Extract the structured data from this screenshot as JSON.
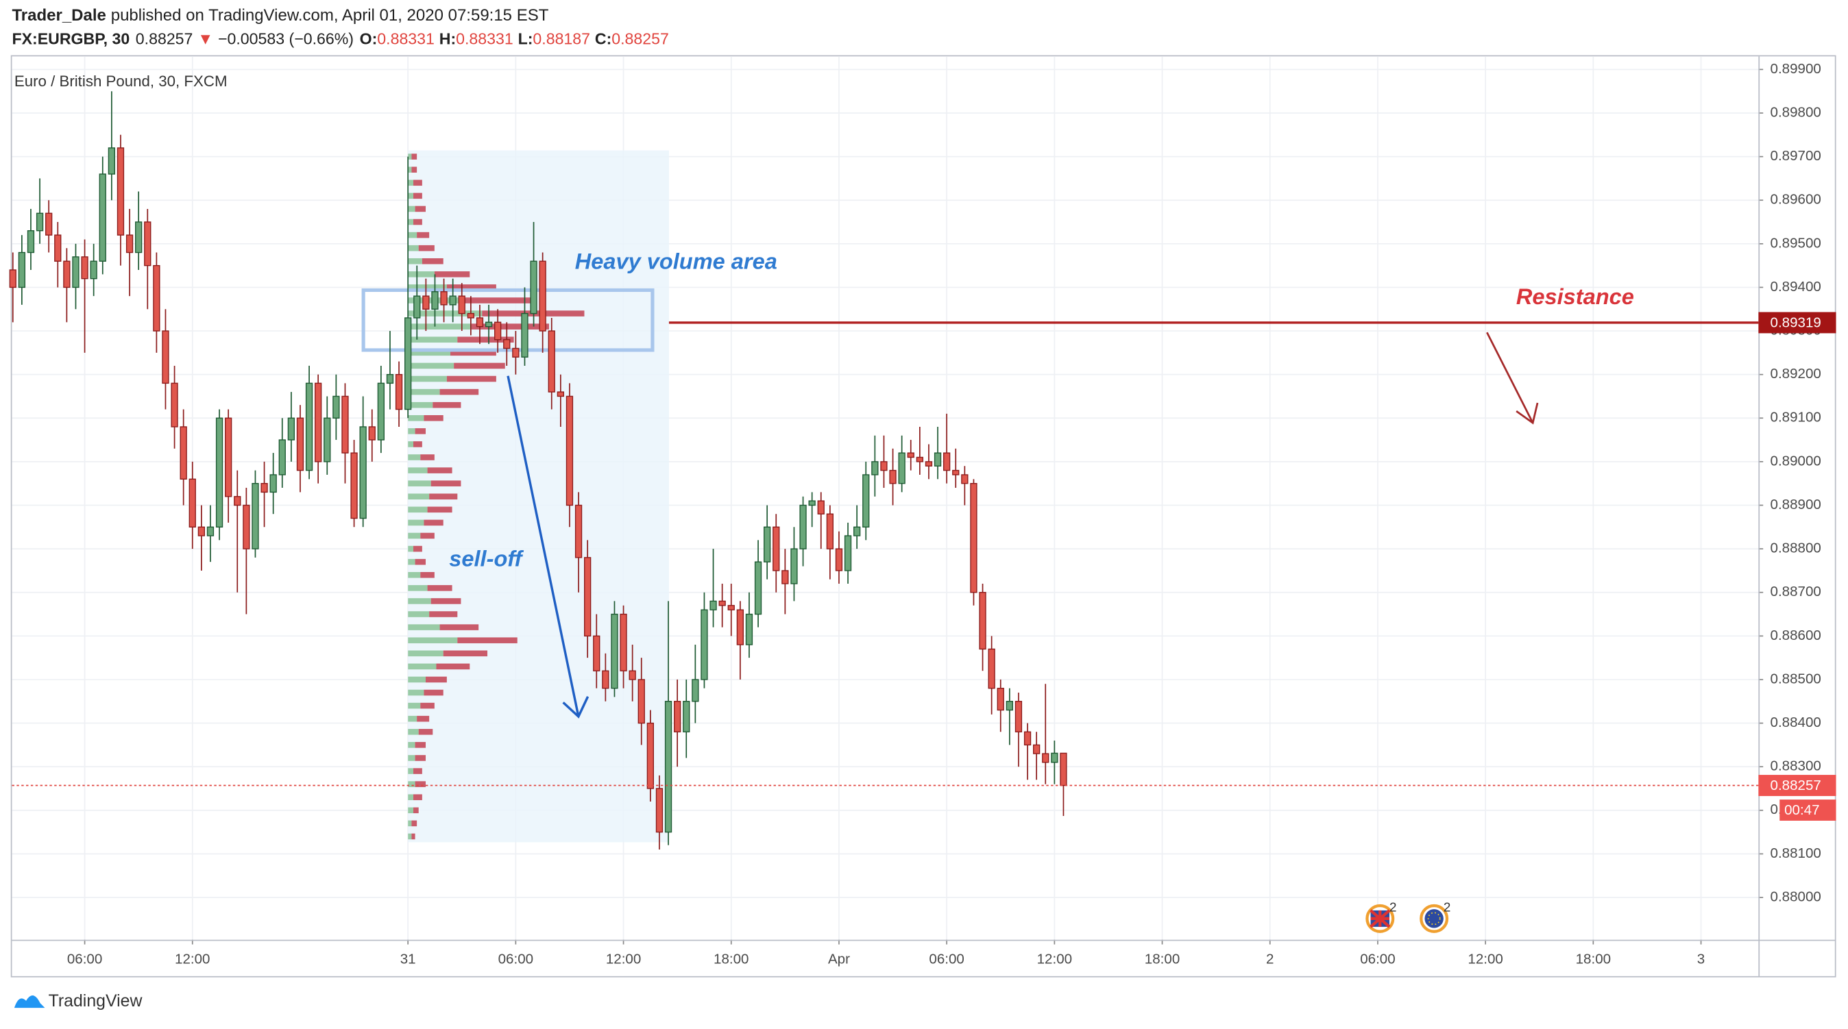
{
  "header": {
    "author": "Trader_Dale",
    "published": "published on TradingView.com, April 01, 2020 07:59:15 EST",
    "symbol": "FX:EURGBP, 30",
    "direction": "▼",
    "change": "−0.00583 (−0.66%)",
    "ohlc_labels": [
      "O:",
      "H:",
      "L:",
      "C:"
    ]
  },
  "footer": {
    "brand": "TradingView"
  },
  "chart_data": {
    "type": "candlestick",
    "title": "Euro / British Pound, 30, FXCM",
    "x": [
      2,
      2.5,
      3,
      3.5,
      4,
      4.5,
      5,
      5.5,
      6,
      6.5,
      7,
      7.5,
      8,
      8.5,
      9,
      9.5,
      10,
      10.5,
      11,
      11.5,
      12,
      12.5,
      13,
      13.5,
      14,
      14.5,
      15,
      15.5,
      16,
      16.5,
      17,
      17.5,
      18,
      18.5,
      19,
      19.5,
      20,
      20.5,
      21,
      21.5,
      22,
      22.5,
      23,
      23.5,
      24,
      24.5,
      25,
      25.5,
      26,
      26.5,
      27,
      27.5,
      28,
      28.5,
      29,
      29.5,
      30,
      30.5,
      31,
      31.5,
      32,
      32.5,
      33,
      33.5,
      34,
      34.5,
      35,
      35.5,
      36,
      36.5,
      37,
      37.5,
      38,
      38.5,
      39,
      39.5,
      40,
      40.5,
      41,
      41.5,
      42,
      42.5,
      43,
      43.5,
      44,
      44.5,
      45,
      45.5,
      46,
      46.5,
      47,
      47.5,
      48,
      48.5,
      49,
      49.5,
      50,
      50.5,
      51,
      51.5,
      52,
      52.5,
      53,
      53.5,
      54,
      54.5,
      55,
      55.5,
      56,
      56.5,
      57,
      57.5,
      58,
      58.5,
      59,
      59.5,
      60,
      60.5
    ],
    "open": [
      0.8944,
      0.894,
      0.8948,
      0.8953,
      0.8957,
      0.8952,
      0.8946,
      0.894,
      0.8947,
      0.8942,
      0.8946,
      0.8966,
      0.8972,
      0.8952,
      0.8948,
      0.8955,
      0.8945,
      0.893,
      0.8918,
      0.8908,
      0.8896,
      0.8885,
      0.8883,
      0.8885,
      0.891,
      0.8892,
      0.889,
      0.888,
      0.8895,
      0.8893,
      0.8897,
      0.8905,
      0.891,
      0.8898,
      0.8918,
      0.89,
      0.891,
      0.8915,
      0.8902,
      0.8887,
      0.8908,
      0.8905,
      0.8918,
      0.892,
      0.8912,
      0.8933,
      0.8938,
      0.8935,
      0.8939,
      0.8936,
      0.8938,
      0.8934,
      0.8933,
      0.8931,
      0.8932,
      0.8928,
      0.8926,
      0.8924,
      0.8934,
      0.8946,
      0.893,
      0.8916,
      0.8915,
      0.889,
      0.8878,
      0.886,
      0.8852,
      0.8848,
      0.8865,
      0.8852,
      0.885,
      0.884,
      0.8825,
      0.8815,
      0.8845,
      0.8838,
      0.8845,
      0.885,
      0.8866,
      0.8868,
      0.8867,
      0.8866,
      0.8858,
      0.8865,
      0.8877,
      0.8885,
      0.8875,
      0.8872,
      0.888,
      0.889,
      0.8891,
      0.8888,
      0.888,
      0.8875,
      0.8883,
      0.8885,
      0.8897,
      0.89,
      0.8898,
      0.8895,
      0.8902,
      0.8901,
      0.89,
      0.8899,
      0.8902,
      0.8898,
      0.8897,
      0.8895,
      0.887,
      0.8857,
      0.8848,
      0.8843,
      0.8845,
      0.8838,
      0.8835,
      0.8833,
      0.8831,
      0.88331
    ],
    "high": [
      0.8948,
      0.8952,
      0.8958,
      0.8965,
      0.896,
      0.8955,
      0.8949,
      0.895,
      0.8951,
      0.895,
      0.897,
      0.8985,
      0.8975,
      0.8958,
      0.8962,
      0.8958,
      0.8948,
      0.8935,
      0.8922,
      0.8912,
      0.89,
      0.889,
      0.889,
      0.8912,
      0.8912,
      0.8898,
      0.8894,
      0.8898,
      0.89,
      0.8902,
      0.891,
      0.8916,
      0.8913,
      0.8922,
      0.892,
      0.8915,
      0.892,
      0.8918,
      0.8905,
      0.8915,
      0.8912,
      0.8922,
      0.893,
      0.8923,
      0.897,
      0.8945,
      0.8942,
      0.8943,
      0.8942,
      0.8942,
      0.8941,
      0.8938,
      0.8936,
      0.8936,
      0.8935,
      0.8932,
      0.893,
      0.894,
      0.8955,
      0.8948,
      0.8933,
      0.892,
      0.8918,
      0.8893,
      0.8882,
      0.8865,
      0.8856,
      0.8868,
      0.8867,
      0.8858,
      0.8855,
      0.8843,
      0.8828,
      0.8868,
      0.885,
      0.885,
      0.8858,
      0.887,
      0.888,
      0.8872,
      0.8872,
      0.8868,
      0.887,
      0.8882,
      0.889,
      0.8888,
      0.888,
      0.8885,
      0.8892,
      0.8893,
      0.8893,
      0.889,
      0.8884,
      0.8886,
      0.889,
      0.89,
      0.8906,
      0.8906,
      0.8903,
      0.8906,
      0.8905,
      0.8908,
      0.8904,
      0.8908,
      0.8911,
      0.8903,
      0.8899,
      0.8896,
      0.8872,
      0.886,
      0.885,
      0.8848,
      0.8847,
      0.884,
      0.8838,
      0.8849,
      0.8836,
      0.88331
    ],
    "low": [
      0.8932,
      0.8936,
      0.8944,
      0.895,
      0.8948,
      0.894,
      0.8932,
      0.8935,
      0.8925,
      0.8938,
      0.8943,
      0.896,
      0.8945,
      0.8938,
      0.8944,
      0.8935,
      0.8925,
      0.8912,
      0.8903,
      0.889,
      0.888,
      0.8875,
      0.8877,
      0.8882,
      0.8886,
      0.887,
      0.8865,
      0.8878,
      0.8885,
      0.8888,
      0.8894,
      0.89,
      0.8893,
      0.8896,
      0.8895,
      0.8897,
      0.8905,
      0.8895,
      0.8885,
      0.8885,
      0.89,
      0.8902,
      0.8912,
      0.8908,
      0.891,
      0.8928,
      0.893,
      0.8931,
      0.8932,
      0.8932,
      0.893,
      0.8929,
      0.8927,
      0.8927,
      0.8925,
      0.8922,
      0.892,
      0.8922,
      0.8931,
      0.8925,
      0.8912,
      0.8908,
      0.8885,
      0.887,
      0.8855,
      0.8848,
      0.8845,
      0.8846,
      0.8848,
      0.8845,
      0.8835,
      0.8822,
      0.8811,
      0.8812,
      0.883,
      0.8832,
      0.884,
      0.8848,
      0.8862,
      0.8862,
      0.886,
      0.885,
      0.8855,
      0.8862,
      0.8873,
      0.887,
      0.8865,
      0.8868,
      0.8876,
      0.8885,
      0.888,
      0.8873,
      0.8872,
      0.8872,
      0.888,
      0.8882,
      0.8892,
      0.8894,
      0.889,
      0.8893,
      0.8898,
      0.8897,
      0.8896,
      0.8896,
      0.8895,
      0.8894,
      0.889,
      0.8867,
      0.8852,
      0.8842,
      0.8838,
      0.8835,
      0.883,
      0.8827,
      0.8827,
      0.8826,
      0.8826,
      0.88187
    ],
    "close": [
      0.894,
      0.8948,
      0.8953,
      0.8957,
      0.8952,
      0.8946,
      0.894,
      0.8947,
      0.8942,
      0.8946,
      0.8966,
      0.8972,
      0.8952,
      0.8948,
      0.8955,
      0.8945,
      0.893,
      0.8918,
      0.8908,
      0.8896,
      0.8885,
      0.8883,
      0.8885,
      0.891,
      0.8892,
      0.889,
      0.888,
      0.8895,
      0.8893,
      0.8897,
      0.8905,
      0.891,
      0.8898,
      0.8918,
      0.89,
      0.891,
      0.8915,
      0.8902,
      0.8887,
      0.8908,
      0.8905,
      0.8918,
      0.892,
      0.8912,
      0.8933,
      0.8938,
      0.8935,
      0.8939,
      0.8936,
      0.8938,
      0.8934,
      0.8933,
      0.8931,
      0.8932,
      0.8928,
      0.8926,
      0.8924,
      0.8934,
      0.8946,
      0.893,
      0.8916,
      0.8915,
      0.889,
      0.8878,
      0.886,
      0.8852,
      0.8848,
      0.8865,
      0.8852,
      0.885,
      0.884,
      0.8825,
      0.8815,
      0.8845,
      0.8838,
      0.8845,
      0.885,
      0.8866,
      0.8868,
      0.8867,
      0.8866,
      0.8858,
      0.8865,
      0.8877,
      0.8885,
      0.8875,
      0.8872,
      0.888,
      0.889,
      0.8891,
      0.8888,
      0.888,
      0.8875,
      0.8883,
      0.8885,
      0.8897,
      0.89,
      0.8898,
      0.8895,
      0.8902,
      0.8901,
      0.89,
      0.8899,
      0.8902,
      0.8898,
      0.8897,
      0.8895,
      0.887,
      0.8857,
      0.8848,
      0.8843,
      0.8845,
      0.8838,
      0.8835,
      0.8833,
      0.8831,
      0.88331,
      0.88257
    ],
    "up_color": "#6aa77a",
    "down_color": "#e0574d",
    "xlim": [
      1.95,
      99.2
    ],
    "xticks": [
      {
        "value": 6,
        "label": "06:00"
      },
      {
        "value": 12,
        "label": "12:00"
      },
      {
        "value": 24,
        "label": "31"
      },
      {
        "value": 30,
        "label": "06:00"
      },
      {
        "value": 36,
        "label": "12:00"
      },
      {
        "value": 42,
        "label": "18:00"
      },
      {
        "value": 48,
        "label": "Apr"
      },
      {
        "value": 54,
        "label": "06:00"
      },
      {
        "value": 60,
        "label": "12:00"
      },
      {
        "value": 66,
        "label": "18:00"
      },
      {
        "value": 72,
        "label": "2"
      },
      {
        "value": 78,
        "label": "06:00"
      },
      {
        "value": 84,
        "label": "12:00"
      },
      {
        "value": 90,
        "label": "18:00"
      },
      {
        "value": 96,
        "label": "3"
      }
    ],
    "ylim": [
      0.87903,
      0.8993
    ],
    "yticks": [
      {
        "value": 0.88,
        "label": "0.88000"
      },
      {
        "value": 0.881,
        "label": "0.88100"
      },
      {
        "value": 0.882,
        "label": "0.88200"
      },
      {
        "value": 0.883,
        "label": "0.88300"
      },
      {
        "value": 0.884,
        "label": "0.88400"
      },
      {
        "value": 0.885,
        "label": "0.88500"
      },
      {
        "value": 0.886,
        "label": "0.88600"
      },
      {
        "value": 0.887,
        "label": "0.88700"
      },
      {
        "value": 0.888,
        "label": "0.88800"
      },
      {
        "value": 0.889,
        "label": "0.88900"
      },
      {
        "value": 0.89,
        "label": "0.89000"
      },
      {
        "value": 0.891,
        "label": "0.89100"
      },
      {
        "value": 0.892,
        "label": "0.89200"
      },
      {
        "value": 0.893,
        "label": "0.89300"
      },
      {
        "value": 0.894,
        "label": "0.89400"
      },
      {
        "value": 0.895,
        "label": "0.89500"
      },
      {
        "value": 0.896,
        "label": "0.89600"
      },
      {
        "value": 0.897,
        "label": "0.89700"
      },
      {
        "value": 0.898,
        "label": "0.89800"
      },
      {
        "value": 0.899,
        "label": "0.89900"
      }
    ],
    "grid": true,
    "volume_profile": {
      "price": [
        0.897,
        0.8967,
        0.8964,
        0.8961,
        0.8958,
        0.8955,
        0.8952,
        0.8949,
        0.8946,
        0.8943,
        0.894,
        0.8937,
        0.8934,
        0.8931,
        0.8928,
        0.8925,
        0.8922,
        0.8919,
        0.8916,
        0.8913,
        0.891,
        0.8907,
        0.8904,
        0.8901,
        0.8898,
        0.8895,
        0.8892,
        0.8889,
        0.8886,
        0.8883,
        0.888,
        0.8877,
        0.8874,
        0.8871,
        0.8868,
        0.8865,
        0.8862,
        0.8859,
        0.8856,
        0.8853,
        0.885,
        0.8847,
        0.8844,
        0.8841,
        0.8838,
        0.8835,
        0.8832,
        0.8829,
        0.8826,
        0.8823,
        0.882,
        0.8817,
        0.8814
      ],
      "up": [
        2,
        2,
        3,
        3,
        4,
        3,
        5,
        6,
        8,
        15,
        22,
        30,
        42,
        36,
        28,
        24,
        26,
        22,
        18,
        14,
        9,
        4,
        3,
        7,
        11,
        13,
        12,
        11,
        9,
        7,
        3,
        4,
        7,
        11,
        13,
        12,
        18,
        28,
        20,
        16,
        10,
        9,
        7,
        5,
        6,
        4,
        4,
        3,
        4,
        3,
        3,
        2,
        2
      ],
      "down": [
        3,
        3,
        5,
        5,
        6,
        5,
        7,
        9,
        12,
        20,
        28,
        40,
        58,
        44,
        32,
        26,
        29,
        28,
        22,
        16,
        11,
        6,
        5,
        8,
        14,
        17,
        16,
        14,
        11,
        8,
        5,
        6,
        8,
        14,
        17,
        16,
        22,
        34,
        25,
        19,
        12,
        11,
        8,
        7,
        8,
        6,
        6,
        5,
        6,
        5,
        3,
        3,
        2
      ],
      "up_color": "#8fc79c",
      "down_color": "#c44a5a"
    },
    "annotations": {
      "volume_area": "Heavy volume area",
      "selloff": "sell-off"
    },
    "resistance": {
      "label": "Resistance",
      "price": 0.89319
    },
    "countdown": "00:47",
    "event_counts": [
      2,
      2
    ]
  }
}
